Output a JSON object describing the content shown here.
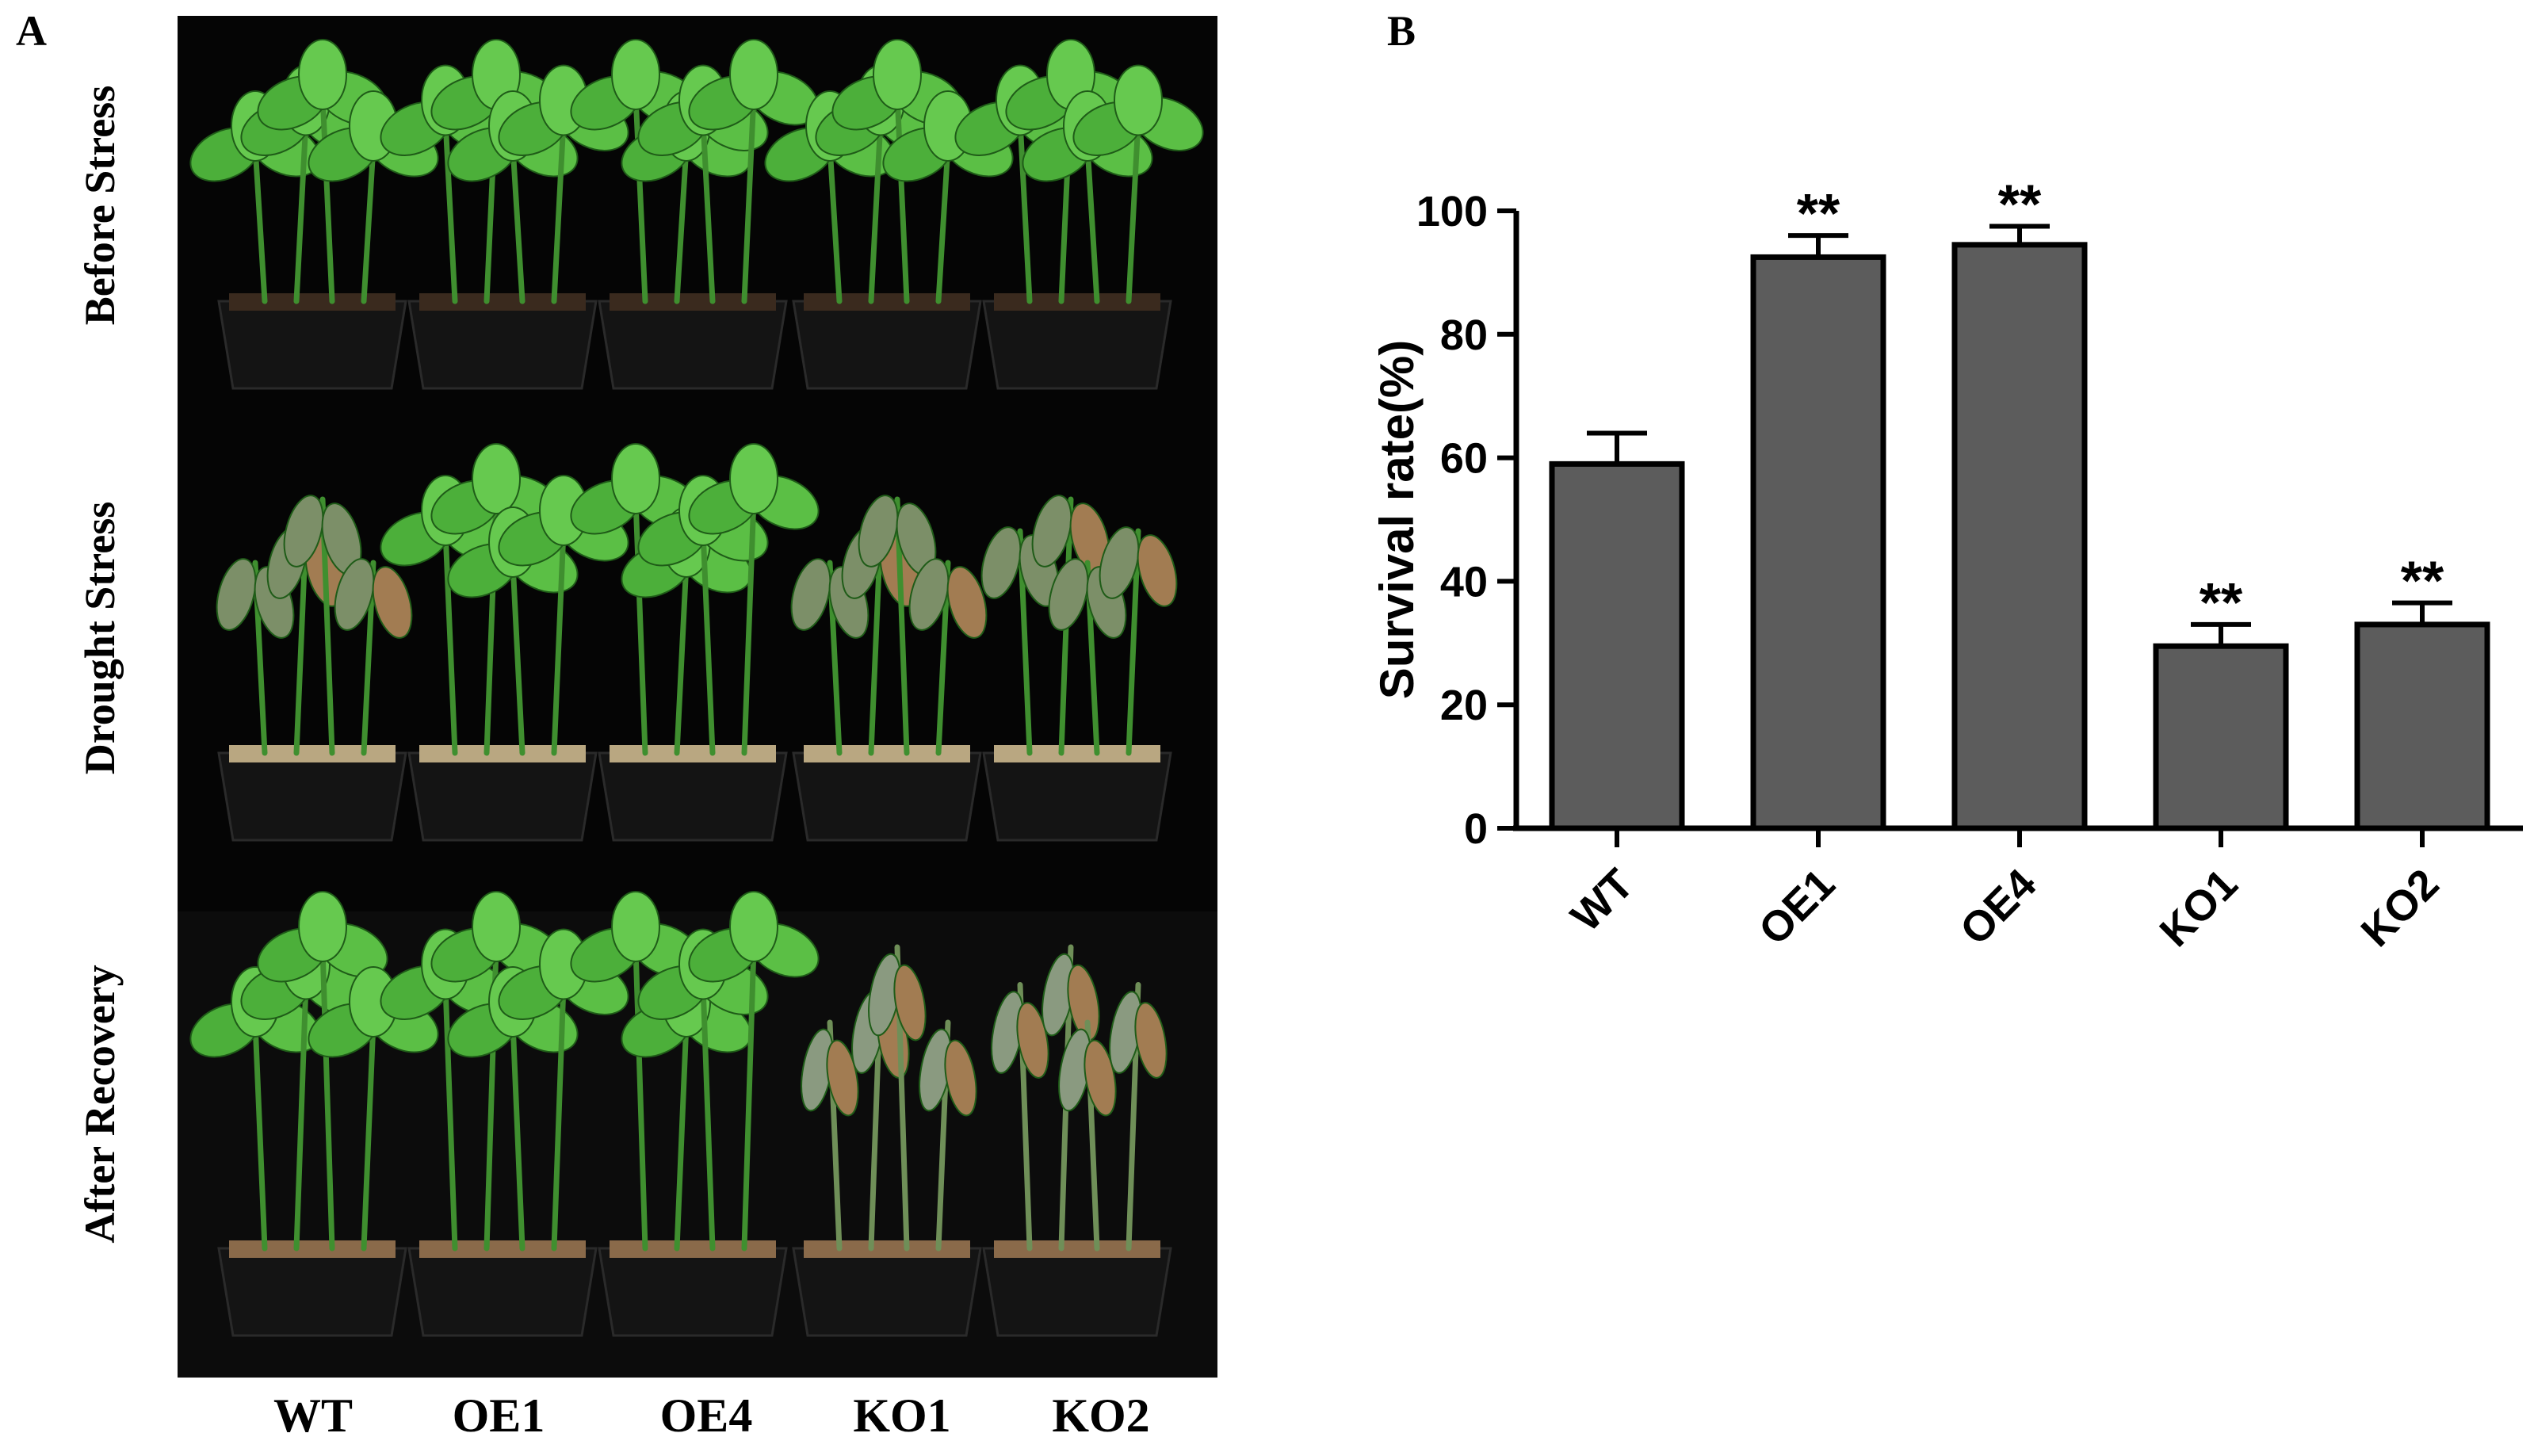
{
  "panel_a": {
    "letter": "A",
    "row_labels": [
      "Before Stress",
      "Drought Stress",
      "After Recovery"
    ],
    "genotype_labels": [
      "WT",
      "OE1",
      "OE4",
      "KO1",
      "KO2"
    ],
    "colors": {
      "background": "#050505",
      "leaf_healthy": "#4caf3a",
      "leaf_wilted": "#7c8f68",
      "leaf_dead": "#a27c52",
      "soil": "#b9a781",
      "pot": "#141414"
    }
  },
  "panel_b": {
    "letter": "B"
  },
  "chart_data": {
    "type": "bar",
    "title": "",
    "xlabel": "",
    "ylabel": "Survival rate(%)",
    "categories": [
      "WT",
      "OE1",
      "OE4",
      "KO1",
      "KO2"
    ],
    "values": [
      59,
      92.5,
      94.5,
      29.5,
      33
    ],
    "errors": [
      5,
      3.5,
      3,
      3.5,
      3.5
    ],
    "significance": [
      "",
      "**",
      "**",
      "**",
      "**"
    ],
    "ylim": [
      0,
      100
    ],
    "yticks": [
      0,
      20,
      40,
      60,
      80,
      100
    ],
    "grid": false,
    "bar_color": "#5c5c5c",
    "edge_color": "#000000"
  }
}
